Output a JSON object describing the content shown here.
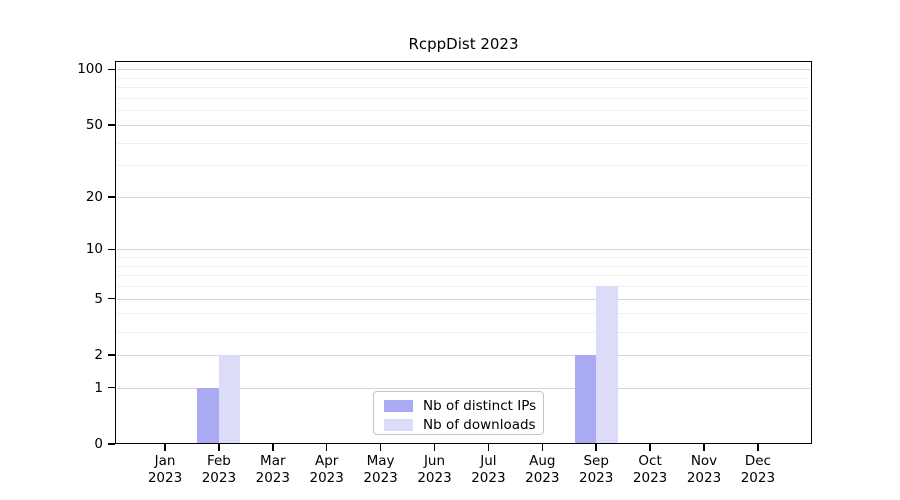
{
  "title": "RcppDist 2023",
  "chart_data": {
    "type": "bar",
    "title": "RcppDist 2023",
    "x_categories": [
      "Jan",
      "Feb",
      "Mar",
      "Apr",
      "May",
      "Jun",
      "Jul",
      "Aug",
      "Sep",
      "Oct",
      "Nov",
      "Dec"
    ],
    "x_year": "2023",
    "series": [
      {
        "name": "Nb of distinct IPs",
        "color": "#aaaaf2",
        "values": [
          0,
          1,
          0,
          0,
          0,
          0,
          0,
          0,
          2,
          0,
          0,
          0
        ]
      },
      {
        "name": "Nb of downloads",
        "color": "#dcdcf9",
        "values": [
          0,
          2,
          0,
          0,
          0,
          0,
          0,
          0,
          6,
          0,
          0,
          0
        ]
      }
    ],
    "y_scale": "log1p",
    "y_major_ticks": [
      0,
      1,
      2,
      5,
      10,
      20,
      50,
      100
    ],
    "y_minor_gridlines": [
      3,
      4,
      6,
      7,
      8,
      9,
      30,
      40,
      60,
      70,
      80,
      90
    ],
    "ylim": [
      0,
      111
    ],
    "grid": "horizontal",
    "legend_position": "inside-bottom-center"
  },
  "legend": {
    "items": [
      {
        "label": "Nb of distinct IPs",
        "swatch_color": "#aaaaf2"
      },
      {
        "label": "Nb of downloads",
        "swatch_color": "#dcdcf9"
      }
    ]
  },
  "colors": {
    "distinct_ips_bar": "#aaaaf2",
    "downloads_bar": "#dcdcf9",
    "major_grid": "#d6d6d6",
    "minor_grid": "#efefef",
    "axis": "#000000",
    "background": "#ffffff"
  }
}
